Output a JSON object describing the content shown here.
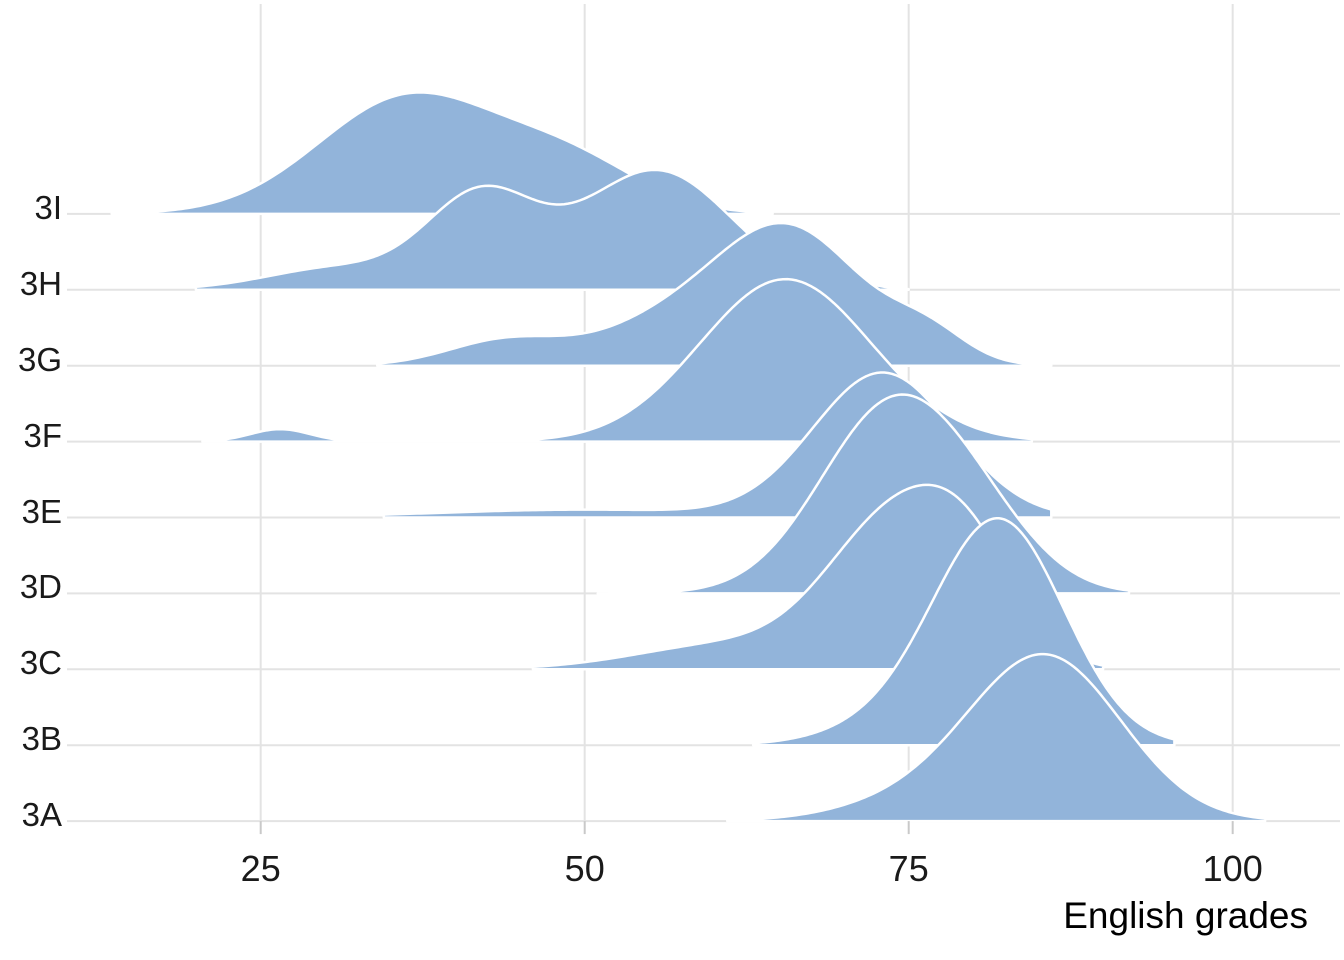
{
  "chart_data": {
    "type": "area",
    "subtype": "ridgeline-density",
    "title": "",
    "xlabel": "English grades",
    "ylabel": "",
    "x_axis": {
      "label": "English grades",
      "ticks": [
        25,
        50,
        75,
        100
      ],
      "tick_labels": [
        "25",
        "50",
        "75",
        "100"
      ],
      "range_shown": [
        10,
        108
      ]
    },
    "y_axis": {
      "categories_top_to_bottom": [
        "3I",
        "3H",
        "3G",
        "3F",
        "3E",
        "3D",
        "3C",
        "3B",
        "3A"
      ]
    },
    "legend": "none",
    "grid": "major gridlines, light gray, vertical at x ticks and horizontal at each class baseline",
    "classes": [
      {
        "label": "3I",
        "range": [
          13.5,
          64.5
        ],
        "peak_grade": 36.5,
        "peak_height_rows": 1.6,
        "components": [
          {
            "mean": 36.5,
            "sd": 7.0,
            "weight": 0.76
          },
          {
            "mean": 49.0,
            "sd": 5.5,
            "weight": 0.24
          }
        ]
      },
      {
        "label": "3H",
        "range": [
          20.0,
          75.0
        ],
        "peak_grade": 55.5,
        "peak_height_rows": 1.58,
        "components": [
          {
            "mean": 42.0,
            "sd": 4.2,
            "weight": 0.32
          },
          {
            "mean": 55.5,
            "sd": 5.8,
            "weight": 0.57
          },
          {
            "mean": 31.0,
            "sd": 5.5,
            "weight": 0.1
          },
          {
            "mean": 70.5,
            "sd": 1.8,
            "weight": 0.008
          }
        ]
      },
      {
        "label": "3G",
        "range": [
          34.0,
          86.0
        ],
        "peak_grade": 65.5,
        "peak_height_rows": 1.88,
        "components": [
          {
            "mean": 65.5,
            "sd": 5.8,
            "weight": 0.7
          },
          {
            "mean": 44.0,
            "sd": 4.5,
            "weight": 0.1
          },
          {
            "mean": 55.0,
            "sd": 5.0,
            "weight": 0.13
          },
          {
            "mean": 76.5,
            "sd": 3.0,
            "weight": 0.07
          }
        ]
      },
      {
        "label": "3F",
        "range": [
          20.5,
          84.5
        ],
        "peak_grade": 65.5,
        "peak_height_rows": 2.14,
        "components": [
          {
            "mean": 26.5,
            "sd": 2.3,
            "weight": 0.026
          },
          {
            "mean": 65.5,
            "sd": 6.6,
            "weight": 0.974
          }
        ]
      },
      {
        "label": "3E",
        "range": [
          34.5,
          86.0
        ],
        "peak_grade": 73.0,
        "peak_height_rows": 1.91,
        "components": [
          {
            "mean": 73.0,
            "sd": 5.4,
            "weight": 0.9
          },
          {
            "mean": 50.0,
            "sd": 11.0,
            "weight": 0.1
          }
        ]
      },
      {
        "label": "3D",
        "range": [
          51.0,
          92.0
        ],
        "peak_grade": 74.0,
        "peak_height_rows": 2.62,
        "components": [
          {
            "mean": 73.8,
            "sd": 5.6,
            "weight": 0.86
          },
          {
            "mean": 81.0,
            "sd": 4.5,
            "weight": 0.14
          }
        ]
      },
      {
        "label": "3C",
        "range": [
          46.0,
          90.0
        ],
        "peak_grade": 74.3,
        "peak_height_rows": 2.43,
        "components": [
          {
            "mean": 74.0,
            "sd": 5.2,
            "weight": 0.62
          },
          {
            "mean": 80.0,
            "sd": 3.8,
            "weight": 0.24
          },
          {
            "mean": 61.0,
            "sd": 7.0,
            "weight": 0.14
          }
        ]
      },
      {
        "label": "3B",
        "range": [
          63.0,
          95.5
        ],
        "peak_grade": 82.0,
        "peak_height_rows": 2.99,
        "components": [
          {
            "mean": 82.0,
            "sd": 5.0,
            "weight": 0.93
          },
          {
            "mean": 73.5,
            "sd": 5.0,
            "weight": 0.07
          }
        ]
      },
      {
        "label": "3A",
        "range": [
          61.0,
          102.5
        ],
        "peak_grade": 85.4,
        "peak_height_rows": 2.2,
        "components": [
          {
            "mean": 85.5,
            "sd": 5.9,
            "weight": 0.92
          },
          {
            "mean": 74.5,
            "sd": 5.5,
            "weight": 0.08
          }
        ]
      }
    ],
    "colors": {
      "fill": "#92B4DA",
      "curve_outline": "#FFFFFF",
      "grid": "#E3E3E3",
      "tick_mark": "#C9C9C9",
      "axis_text": "#1a1a1a",
      "background": "#FFFFFF"
    }
  }
}
